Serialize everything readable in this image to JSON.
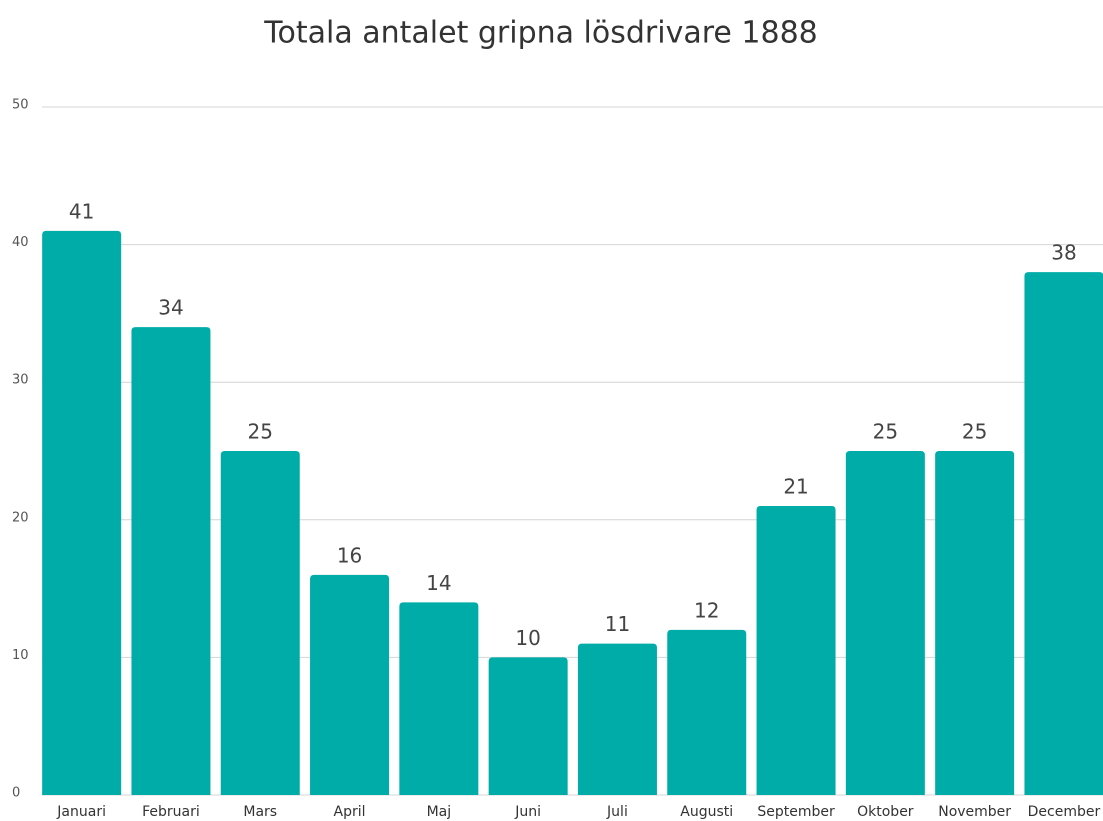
{
  "chart_data": {
    "type": "bar",
    "title": "Totala antalet gripna lösdrivare 1888",
    "categories": [
      "Januari",
      "Februari",
      "Mars",
      "April",
      "Maj",
      "Juni",
      "Juli",
      "Augusti",
      "September",
      "Oktober",
      "November",
      "December"
    ],
    "values": [
      41,
      34,
      25,
      16,
      14,
      10,
      11,
      12,
      21,
      25,
      25,
      38
    ],
    "color": "#00aca8",
    "ylim": [
      0,
      50
    ],
    "yticks": [
      0,
      10,
      20,
      30,
      40,
      50
    ],
    "grid": true
  }
}
